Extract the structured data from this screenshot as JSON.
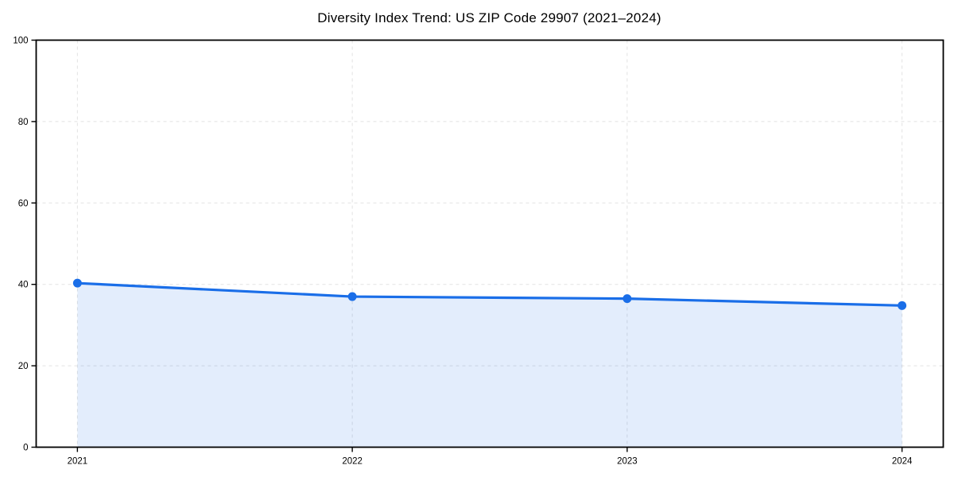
{
  "chart_data": {
    "type": "area",
    "title": "Diversity Index Trend: US ZIP Code 29907 (2021–2024)",
    "x": [
      2021,
      2022,
      2023,
      2024
    ],
    "x_tick_labels": [
      "2021",
      "2022",
      "2023",
      "2024"
    ],
    "series": [
      {
        "name": "Diversity Index",
        "values": [
          40.3,
          37.0,
          36.5,
          34.8
        ]
      }
    ],
    "xlabel": "",
    "ylabel": "",
    "xlim": [
      2020.85,
      2024.15
    ],
    "ylim": [
      0,
      100
    ],
    "yticks": [
      0,
      20,
      40,
      60,
      80,
      100
    ],
    "ytick_labels": [
      "0",
      "20",
      "40",
      "60",
      "80",
      "100"
    ],
    "grid": true,
    "grid_style": "dashed",
    "legend": false,
    "marker": "circle",
    "colors": {
      "line": "#1a6ee8",
      "marker": "#1a6ee8",
      "area_fill": "#1a6ee8",
      "area_fill_opacity": 0.12,
      "grid": "#e2e2e2",
      "axis": "#000000",
      "tick_label": "#000000",
      "title": "#000000",
      "background": "#ffffff"
    }
  }
}
